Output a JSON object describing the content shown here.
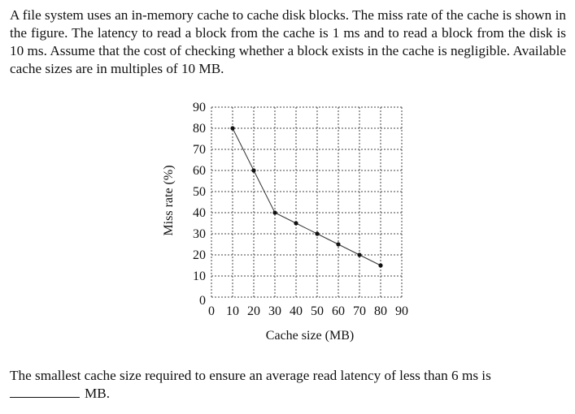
{
  "intro": "A file system uses an in-memory cache to cache disk blocks. The miss rate of the cache is shown in the figure. The latency to read a block from the cache is 1 ms and to read a block from the disk is 10 ms. Assume that the cost of checking whether a block exists in the cache is negligible. Available cache sizes are in multiples of 10 MB.",
  "question": {
    "text": "The smallest cache size required to ensure an average read latency of less than 6 ms is",
    "unit": "MB."
  },
  "chart_data": {
    "type": "line",
    "title": "",
    "xlabel": "Cache size (MB)",
    "ylabel": "Miss rate (%)",
    "xlim": [
      0,
      90
    ],
    "ylim": [
      0,
      90
    ],
    "xticks": [
      0,
      10,
      20,
      30,
      40,
      50,
      60,
      70,
      80,
      90
    ],
    "yticks": [
      0,
      10,
      20,
      30,
      40,
      50,
      60,
      70,
      80,
      90
    ],
    "grid": true,
    "series": [
      {
        "name": "Miss rate",
        "x": [
          10,
          20,
          30,
          40,
          50,
          60,
          70,
          80
        ],
        "y": [
          80,
          60,
          40,
          35,
          30,
          25,
          20,
          15
        ]
      }
    ],
    "colors": {
      "line": "#333333",
      "marker": "#111111",
      "grid": "#444444"
    }
  }
}
